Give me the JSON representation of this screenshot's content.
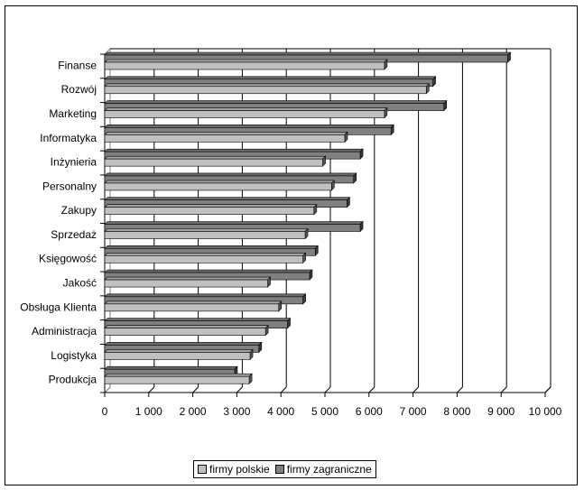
{
  "chart_data": {
    "type": "bar",
    "orientation": "horizontal",
    "categories": [
      "Finanse",
      "Rozwój",
      "Marketing",
      "Informatyka",
      "Inżynieria",
      "Personalny",
      "Zakupy",
      "Sprzedaż",
      "Księgowość",
      "Jakość",
      "Obsługa Klienta",
      "Administracja",
      "Logistyka",
      "Produkcja"
    ],
    "series": [
      {
        "name": "firmy polskie",
        "color": "#c0c0c0",
        "values": [
          6350,
          7300,
          6350,
          5450,
          4950,
          5150,
          4750,
          4550,
          4500,
          3700,
          3950,
          3650,
          3300,
          3280
        ]
      },
      {
        "name": "firmy zagraniczne",
        "color": "#808080",
        "values": [
          9150,
          7450,
          7700,
          6500,
          5800,
          5650,
          5500,
          5800,
          4780,
          4650,
          4500,
          4150,
          3500,
          2950
        ]
      }
    ],
    "x_ticks": [
      "0",
      "1 000",
      "2 000",
      "3 000",
      "4 000",
      "5 000",
      "6 000",
      "7 000",
      "8 000",
      "9 000",
      "10 000"
    ],
    "xlim": [
      0,
      10000
    ],
    "grid": true,
    "legend_position": "bottom",
    "title": "",
    "xlabel": "",
    "ylabel": ""
  }
}
